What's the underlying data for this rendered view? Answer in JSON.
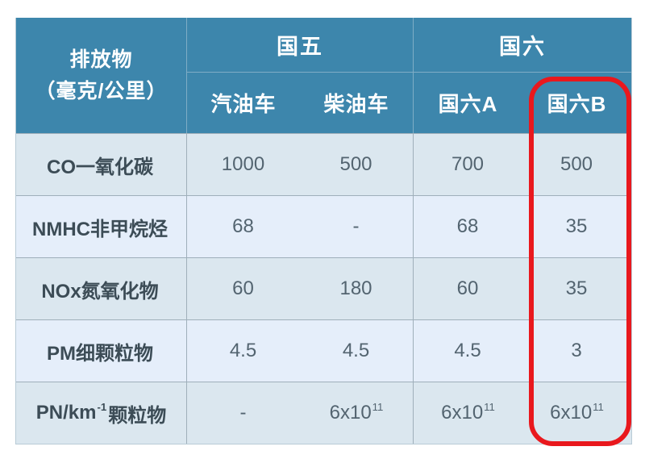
{
  "theme": {
    "header-bg": "#3d86ac",
    "header-text": "#ffffff",
    "header-line": "#7fadc6",
    "row-odd-bg": "#dbe7ef",
    "row-even-bg": "#e5eefa",
    "grid-line": "#9fafba",
    "outer-line": "#b9cbd6",
    "label-text": "#3c4c56",
    "value-text": "#536470",
    "highlight": "#e9181d",
    "page-bg": "#ffffff"
  },
  "chart_data": {
    "type": "table",
    "title": "",
    "row_header": "排放物（毫克/公里）",
    "column_groups": [
      {
        "name": "国五",
        "columns": [
          "汽油车",
          "柴油车"
        ]
      },
      {
        "name": "国六",
        "columns": [
          "国六A",
          "国六B"
        ]
      }
    ],
    "rows": [
      {
        "label": "CO一氧化碳",
        "values": [
          "1000",
          "500",
          "700",
          "500"
        ]
      },
      {
        "label": "NMHC非甲烷烃",
        "values": [
          "68",
          "-",
          "68",
          "35"
        ]
      },
      {
        "label": "NOx氮氧化物",
        "values": [
          "60",
          "180",
          "60",
          "35"
        ]
      },
      {
        "label": "PM细颗粒物",
        "values": [
          "4.5",
          "4.5",
          "4.5",
          "3"
        ]
      },
      {
        "label": "PN/km^-1 颗粒物",
        "values": [
          "-",
          "6x10^11",
          "6x10^11",
          "6x10^11"
        ]
      }
    ],
    "annotation": "国六B column outlined with red rounded rectangle"
  },
  "display": {
    "header": {
      "corner_line1": "排放物",
      "corner_line2": "（毫克/公里）",
      "group1": "国五",
      "group2": "国六",
      "sub1": "汽油车",
      "sub2": "柴油车",
      "sub3": "国六A",
      "sub4": "国六B"
    },
    "rows": [
      {
        "label_pre": "CO一氧化碳",
        "label_sup": "",
        "label_post": "",
        "values": [
          {
            "b": "1000",
            "s": ""
          },
          {
            "b": "500",
            "s": ""
          },
          {
            "b": "700",
            "s": ""
          },
          {
            "b": "500",
            "s": ""
          }
        ]
      },
      {
        "label_pre": "NMHC非甲烷烃",
        "label_sup": "",
        "label_post": "",
        "values": [
          {
            "b": "68",
            "s": ""
          },
          {
            "b": "-",
            "s": ""
          },
          {
            "b": "68",
            "s": ""
          },
          {
            "b": "35",
            "s": ""
          }
        ]
      },
      {
        "label_pre": "NOx氮氧化物",
        "label_sup": "",
        "label_post": "",
        "values": [
          {
            "b": "60",
            "s": ""
          },
          {
            "b": "180",
            "s": ""
          },
          {
            "b": "60",
            "s": ""
          },
          {
            "b": "35",
            "s": ""
          }
        ]
      },
      {
        "label_pre": "PM细颗粒物",
        "label_sup": "",
        "label_post": "",
        "values": [
          {
            "b": "4.5",
            "s": ""
          },
          {
            "b": "4.5",
            "s": ""
          },
          {
            "b": "4.5",
            "s": ""
          },
          {
            "b": "3",
            "s": ""
          }
        ]
      },
      {
        "label_pre": "PN/km",
        "label_sup": "-1",
        "label_post": " 颗粒物",
        "values": [
          {
            "b": "-",
            "s": ""
          },
          {
            "b": "6x10",
            "s": "11"
          },
          {
            "b": "6x10",
            "s": "11"
          },
          {
            "b": "6x10",
            "s": "11"
          }
        ]
      }
    ]
  }
}
